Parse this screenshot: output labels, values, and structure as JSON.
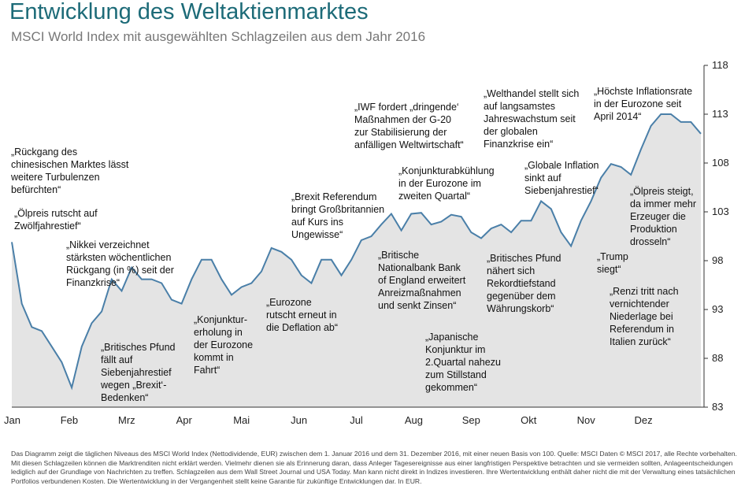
{
  "chart_data": {
    "type": "area",
    "title": "Entwicklung des Weltaktienmarktes",
    "subtitle": "MSCI World Index mit ausgewählten Schlagzeilen aus dem Jahr 2016",
    "month_labels": [
      "Jan",
      "Feb",
      "Mrz",
      "Apr",
      "Mai",
      "Jun",
      "Jul",
      "Aug",
      "Sep",
      "Okt",
      "Nov",
      "Dez"
    ],
    "values": [
      99.9,
      93.6,
      91.2,
      90.8,
      89.2,
      87.6,
      85.0,
      89.2,
      91.6,
      92.8,
      96.1,
      94.9,
      97.3,
      96.1,
      96.1,
      95.7,
      94.0,
      93.6,
      96.1,
      98.1,
      98.1,
      96.1,
      94.5,
      95.3,
      95.7,
      96.9,
      99.3,
      98.9,
      98.1,
      96.5,
      95.7,
      98.1,
      98.1,
      96.5,
      98.1,
      100.1,
      100.5,
      101.7,
      102.8,
      101.1,
      102.8,
      102.9,
      101.7,
      102.0,
      102.7,
      102.5,
      100.9,
      100.3,
      101.3,
      101.7,
      100.9,
      102.1,
      102.1,
      104.1,
      103.3,
      100.9,
      99.5,
      102.1,
      104.1,
      106.5,
      107.9,
      107.6,
      106.8,
      109.4,
      111.8,
      113.0,
      113.0,
      112.2,
      112.2,
      111.0
    ],
    "line_color": "#4a7fa8",
    "fill_color": "#e4e4e4",
    "ylim": [
      83,
      118
    ],
    "yticks": [
      83,
      88,
      93,
      98,
      103,
      108,
      113,
      118
    ],
    "annotations": [
      [
        "„Rückgang des",
        "chinesischen Marktes lässt",
        "weitere Turbulenzen",
        "befürchten“"
      ],
      [
        "„Ölpreis rutscht auf",
        "Zwölfjahrestief“"
      ],
      [
        "„Nikkei verzeichnet",
        "stärksten wöchentlichen",
        "Rückgang (in %) seit der",
        "Finanzkrise“"
      ],
      [
        "„Britisches Pfund",
        "fällt auf",
        "Siebenjahrestief",
        "wegen „Brexit‘-",
        "Bedenken“"
      ],
      [
        "„Konjunktur-",
        "erholung in",
        "der Eurozone",
        "kommt in",
        "Fahrt“"
      ],
      [
        "„Eurozone",
        "rutscht erneut in",
        "die Deflation ab“"
      ],
      [
        "„Brexit Referendum",
        "bringt Großbritannien",
        "auf Kurs ins",
        "Ungewisse“"
      ],
      [
        "„IWF fordert „dringende‘",
        "Maßnahmen der G-20",
        "zur Stabilisierung der",
        "anfälligen Weltwirtschaft“"
      ],
      [
        "„Britische",
        "Nationalbank Bank",
        "of England erweitert",
        "Anreizmaßnahmen",
        "und senkt Zinsen“"
      ],
      [
        "„Konjunkturabkühlung",
        "in der Eurozone im",
        "zweiten Quartal“"
      ],
      [
        "„Japanische",
        "Konjunktur im",
        "2.Quartal nahezu",
        "zum Stillstand",
        "gekommen“"
      ],
      [
        "„Welthandel stellt sich",
        "auf langsamstes",
        "Jahreswachstum seit",
        "der globalen",
        "Finanzkrise ein“"
      ],
      [
        "„Britisches Pfund",
        "nähert sich",
        "Rekordtiefstand",
        "gegenüber dem",
        "Währungskorb“"
      ],
      [
        "„Globale Inflation",
        "sinkt auf",
        "Siebenjahrestief“"
      ],
      [
        "„Höchste Inflationsrate",
        "in der Eurozone seit",
        "April 2014“"
      ],
      [
        "„Ölpreis steigt,",
        "da immer mehr",
        "Erzeuger die",
        "Produktion",
        "drosseln“"
      ],
      [
        "„Trump",
        "siegt“"
      ],
      [
        "„Renzi tritt nach",
        "vernichtender",
        "Niederlage bei",
        "Referendum in",
        "Italien zurück“"
      ]
    ],
    "footnote": "Das Diagramm zeigt die täglichen Niveaus des MSCI World Index (Nettodividende, EUR) zwischen dem 1. Januar 2016 und dem 31. Dezember 2016, mit einer neuen Basis von 100. Quelle: MSCI Daten © MSCI 2017, alle Rechte vorbehalten. Mit diesen Schlagzeilen können die Marktrenditen nicht erklärt werden. Vielmehr dienen sie als Erinnerung daran, dass Anleger Tagesereignisse aus einer langfristigen Perspektive betrachten und sie vermeiden sollten, Anlageentscheidungen lediglich auf der Grundlage von Nachrichten zu treffen. Schlagzeilen aus dem Wall Street Journal und USA Today. Man kann nicht direkt in Indizes investieren. Ihre Wertentwicklung enthält daher nicht die mit der Verwaltung eines tatsächlichen Portfolios verbundenen Kosten. Die Wertentwicklung in der Vergangenheit stellt keine Garantie für zukünftige Entwicklungen dar. In EUR."
  }
}
